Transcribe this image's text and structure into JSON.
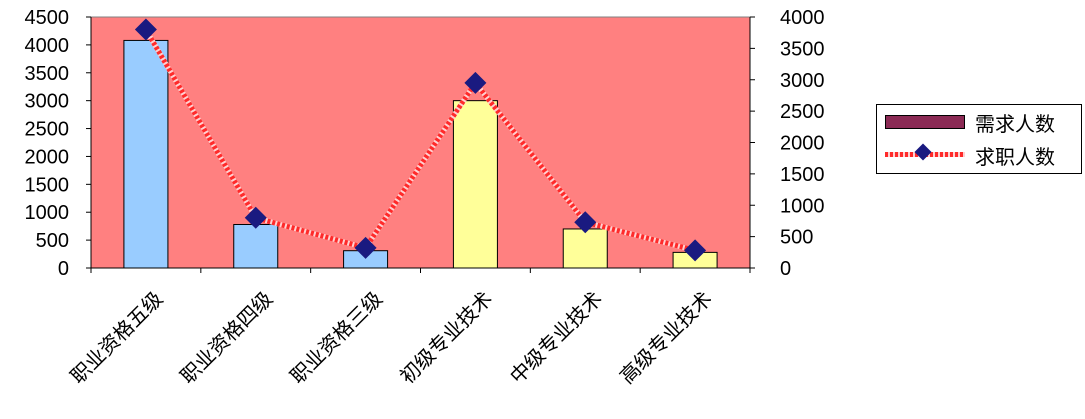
{
  "chart_data": {
    "type": "bar",
    "categories": [
      "职业资格五级",
      "职业资格四级",
      "职业资格三级",
      "初级专业技术",
      "中级专业技术",
      "高级专业技术"
    ],
    "series": [
      {
        "name": "需求人数",
        "type": "bar",
        "axis": "left",
        "values": [
          4080,
          780,
          310,
          3000,
          700,
          280
        ],
        "bar_colors": [
          "#99ccff",
          "#99ccff",
          "#99ccff",
          "#ffff99",
          "#ffff99",
          "#ffff99"
        ],
        "legend_color": "#8b2a55"
      },
      {
        "name": "求职人数",
        "type": "line",
        "axis": "right",
        "values": [
          3800,
          800,
          320,
          2950,
          730,
          280
        ],
        "line_color": "#ff2a2a",
        "marker_color": "#1a1a80",
        "marker": "diamond"
      }
    ],
    "y_left": {
      "min": 0,
      "max": 4500,
      "step": 500
    },
    "y_right": {
      "min": 0,
      "max": 4000,
      "step": 500
    },
    "plot_background": "#ff8080",
    "legend_position": "right",
    "grid": false
  }
}
